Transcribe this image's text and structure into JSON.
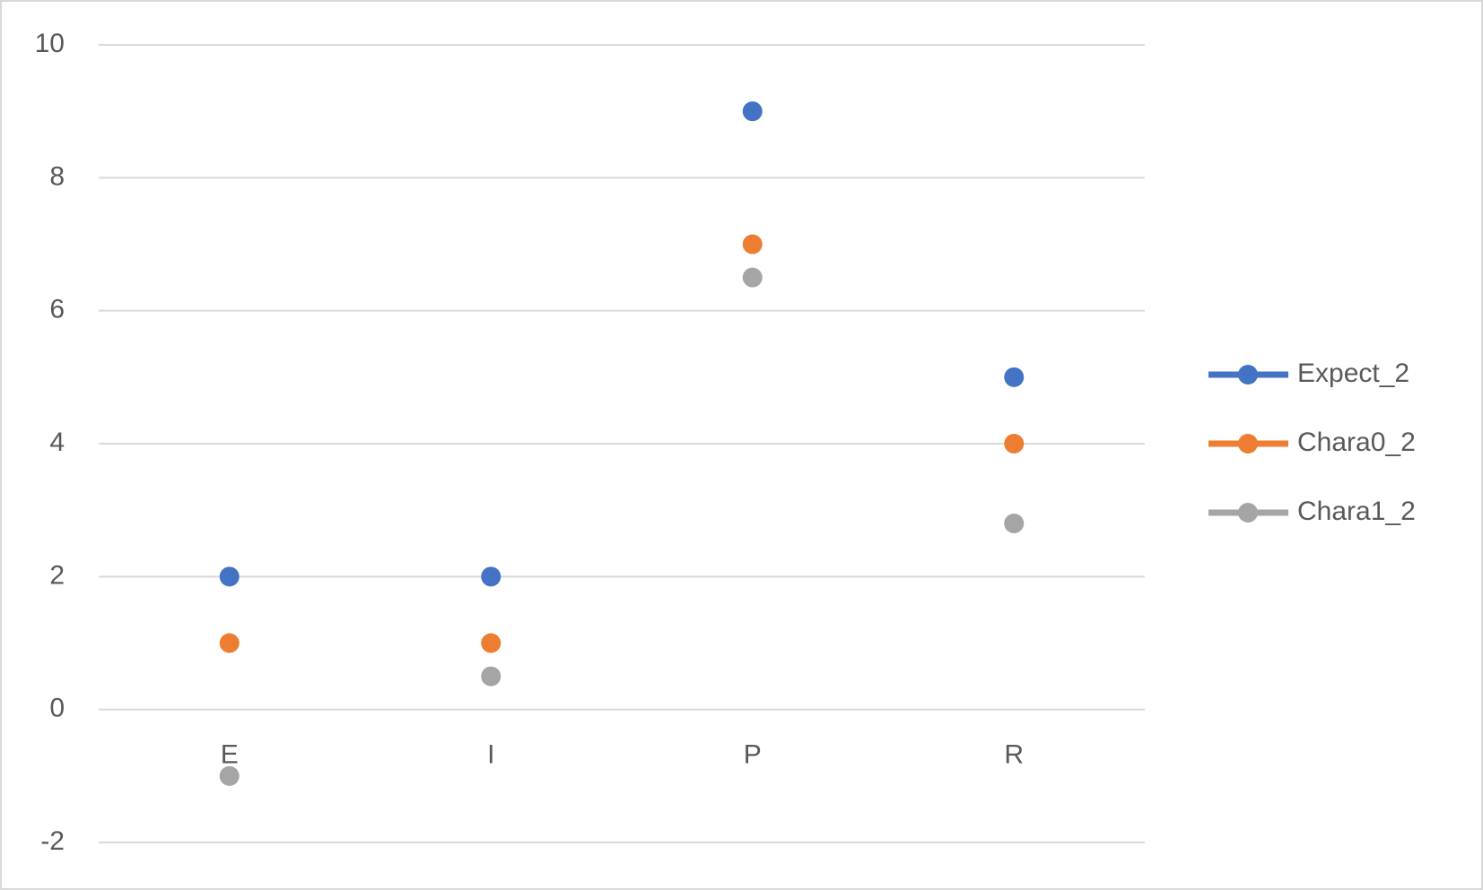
{
  "chart_data": {
    "type": "line",
    "categories": [
      "E",
      "I",
      "P",
      "R"
    ],
    "series": [
      {
        "name": "Expect_2",
        "color": "#4472c4",
        "values": [
          2,
          2,
          9,
          5
        ]
      },
      {
        "name": "Chara0_2",
        "color": "#ed7d31",
        "values": [
          1,
          1,
          7,
          4
        ]
      },
      {
        "name": "Chara1_2",
        "color": "#a5a5a5",
        "values": [
          -1,
          0.5,
          6.5,
          2.8
        ]
      }
    ],
    "ylim": [
      -2,
      10
    ],
    "yticks": [
      -2,
      0,
      2,
      4,
      6,
      8,
      10
    ],
    "grid": true,
    "legend": "right"
  }
}
